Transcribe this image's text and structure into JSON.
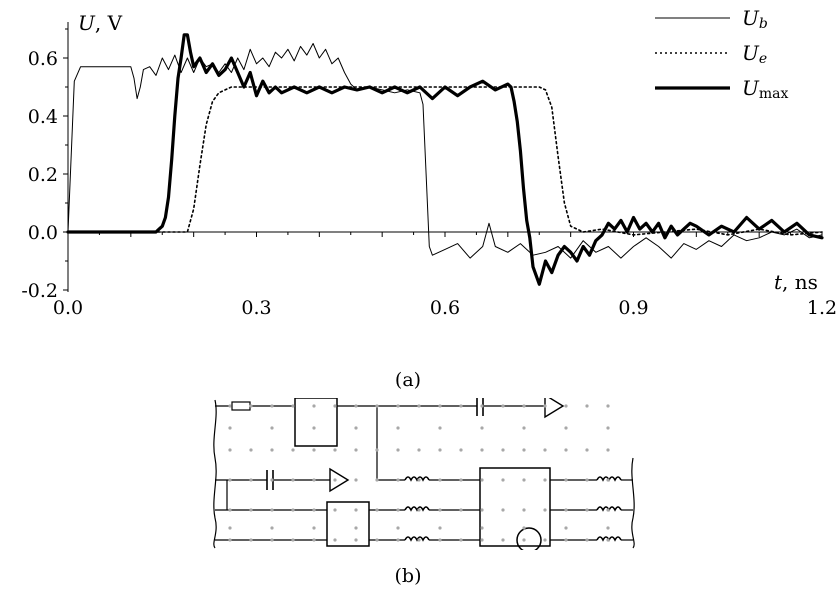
{
  "chart_data": {
    "type": "line",
    "xlabel_var": "t",
    "xlabel_unit": ", ns",
    "ylabel_var": "U",
    "ylabel_unit": ", V",
    "xlim": [
      0.0,
      1.2
    ],
    "ylim": [
      -0.2,
      0.7
    ],
    "xticks": [
      "0.0",
      "0.3",
      "0.6",
      "0.9",
      "1.2"
    ],
    "yticks": [
      "0.6",
      "0.4",
      "0.2",
      "0.0",
      "-0.2"
    ],
    "xtick_values": [
      0.0,
      0.3,
      0.6,
      0.9,
      1.2
    ],
    "ytick_values": [
      0.6,
      0.4,
      0.2,
      0.0,
      -0.2
    ],
    "series": [
      {
        "legend_main": "U",
        "legend_sub": "b",
        "style": "thin",
        "x": [
          0.0,
          0.01,
          0.02,
          0.03,
          0.05,
          0.08,
          0.1,
          0.105,
          0.11,
          0.115,
          0.12,
          0.13,
          0.14,
          0.15,
          0.16,
          0.17,
          0.18,
          0.19,
          0.2,
          0.21,
          0.22,
          0.23,
          0.24,
          0.25,
          0.26,
          0.27,
          0.28,
          0.29,
          0.3,
          0.31,
          0.32,
          0.33,
          0.34,
          0.35,
          0.36,
          0.37,
          0.38,
          0.39,
          0.4,
          0.41,
          0.42,
          0.43,
          0.44,
          0.45,
          0.46,
          0.48,
          0.5,
          0.52,
          0.54,
          0.56,
          0.565,
          0.57,
          0.575,
          0.58,
          0.6,
          0.62,
          0.64,
          0.66,
          0.67,
          0.68,
          0.7,
          0.72,
          0.74,
          0.76,
          0.78,
          0.8,
          0.82,
          0.84,
          0.86,
          0.88,
          0.9,
          0.92,
          0.94,
          0.96,
          0.98,
          1.0,
          1.02,
          1.04,
          1.06,
          1.08,
          1.1,
          1.12,
          1.14,
          1.16,
          1.18,
          1.2
        ],
        "values": [
          0.0,
          0.52,
          0.57,
          0.57,
          0.57,
          0.57,
          0.57,
          0.53,
          0.46,
          0.5,
          0.56,
          0.57,
          0.54,
          0.6,
          0.56,
          0.61,
          0.55,
          0.6,
          0.55,
          0.6,
          0.57,
          0.58,
          0.55,
          0.58,
          0.55,
          0.6,
          0.56,
          0.63,
          0.58,
          0.6,
          0.57,
          0.62,
          0.6,
          0.63,
          0.59,
          0.64,
          0.61,
          0.65,
          0.6,
          0.63,
          0.58,
          0.6,
          0.55,
          0.51,
          0.49,
          0.5,
          0.49,
          0.48,
          0.49,
          0.48,
          0.44,
          0.2,
          -0.05,
          -0.08,
          -0.06,
          -0.04,
          -0.09,
          -0.05,
          0.03,
          -0.05,
          -0.07,
          -0.04,
          -0.08,
          -0.07,
          -0.05,
          -0.09,
          -0.03,
          -0.07,
          -0.05,
          -0.09,
          -0.05,
          -0.02,
          -0.05,
          -0.09,
          -0.04,
          -0.06,
          -0.03,
          -0.05,
          -0.01,
          -0.03,
          -0.02,
          0.0,
          -0.01,
          0.01,
          -0.02,
          -0.01
        ]
      },
      {
        "legend_main": "U",
        "legend_sub": "e",
        "style": "dotted",
        "x": [
          0.0,
          0.18,
          0.19,
          0.2,
          0.21,
          0.22,
          0.23,
          0.24,
          0.25,
          0.26,
          0.3,
          0.4,
          0.5,
          0.6,
          0.7,
          0.75,
          0.76,
          0.77,
          0.78,
          0.79,
          0.8,
          0.82,
          0.85,
          0.9,
          0.95,
          1.0,
          1.05,
          1.1,
          1.15,
          1.2
        ],
        "values": [
          0.0,
          0.0,
          0.0,
          0.08,
          0.23,
          0.37,
          0.45,
          0.48,
          0.49,
          0.5,
          0.5,
          0.5,
          0.5,
          0.5,
          0.5,
          0.5,
          0.49,
          0.43,
          0.26,
          0.1,
          0.02,
          0.0,
          0.01,
          -0.01,
          0.0,
          0.01,
          -0.01,
          0.01,
          -0.01,
          0.0
        ]
      },
      {
        "legend_main": "U",
        "legend_sub": "max",
        "style": "thick",
        "x": [
          0.0,
          0.14,
          0.145,
          0.15,
          0.155,
          0.16,
          0.165,
          0.17,
          0.175,
          0.18,
          0.185,
          0.19,
          0.195,
          0.2,
          0.21,
          0.22,
          0.23,
          0.24,
          0.25,
          0.26,
          0.27,
          0.28,
          0.29,
          0.3,
          0.31,
          0.32,
          0.33,
          0.34,
          0.36,
          0.38,
          0.4,
          0.42,
          0.44,
          0.46,
          0.48,
          0.5,
          0.52,
          0.54,
          0.56,
          0.58,
          0.6,
          0.62,
          0.64,
          0.66,
          0.68,
          0.7,
          0.705,
          0.71,
          0.715,
          0.72,
          0.725,
          0.73,
          0.735,
          0.74,
          0.75,
          0.76,
          0.77,
          0.78,
          0.79,
          0.8,
          0.81,
          0.82,
          0.83,
          0.84,
          0.85,
          0.86,
          0.87,
          0.88,
          0.89,
          0.9,
          0.91,
          0.92,
          0.93,
          0.94,
          0.95,
          0.96,
          0.97,
          0.98,
          0.99,
          1.0,
          1.02,
          1.04,
          1.06,
          1.08,
          1.1,
          1.12,
          1.14,
          1.16,
          1.18,
          1.2
        ],
        "values": [
          0.0,
          0.0,
          0.01,
          0.02,
          0.05,
          0.12,
          0.25,
          0.4,
          0.53,
          0.6,
          0.68,
          0.68,
          0.62,
          0.57,
          0.6,
          0.55,
          0.58,
          0.54,
          0.56,
          0.6,
          0.55,
          0.5,
          0.55,
          0.47,
          0.52,
          0.48,
          0.5,
          0.48,
          0.5,
          0.48,
          0.5,
          0.48,
          0.5,
          0.49,
          0.5,
          0.48,
          0.5,
          0.48,
          0.5,
          0.46,
          0.5,
          0.47,
          0.5,
          0.52,
          0.49,
          0.51,
          0.5,
          0.45,
          0.38,
          0.28,
          0.15,
          0.04,
          -0.02,
          -0.12,
          -0.18,
          -0.1,
          -0.14,
          -0.08,
          -0.05,
          -0.07,
          -0.1,
          -0.05,
          -0.08,
          -0.03,
          -0.01,
          0.03,
          0.01,
          0.04,
          0.0,
          0.05,
          0.01,
          0.03,
          0.0,
          0.03,
          -0.02,
          0.02,
          -0.01,
          0.01,
          0.03,
          0.02,
          -0.01,
          0.02,
          0.0,
          0.05,
          0.01,
          0.04,
          0.0,
          0.03,
          -0.01,
          -0.02
        ]
      }
    ]
  },
  "captions": {
    "a": "(a)",
    "b": "(b)"
  }
}
